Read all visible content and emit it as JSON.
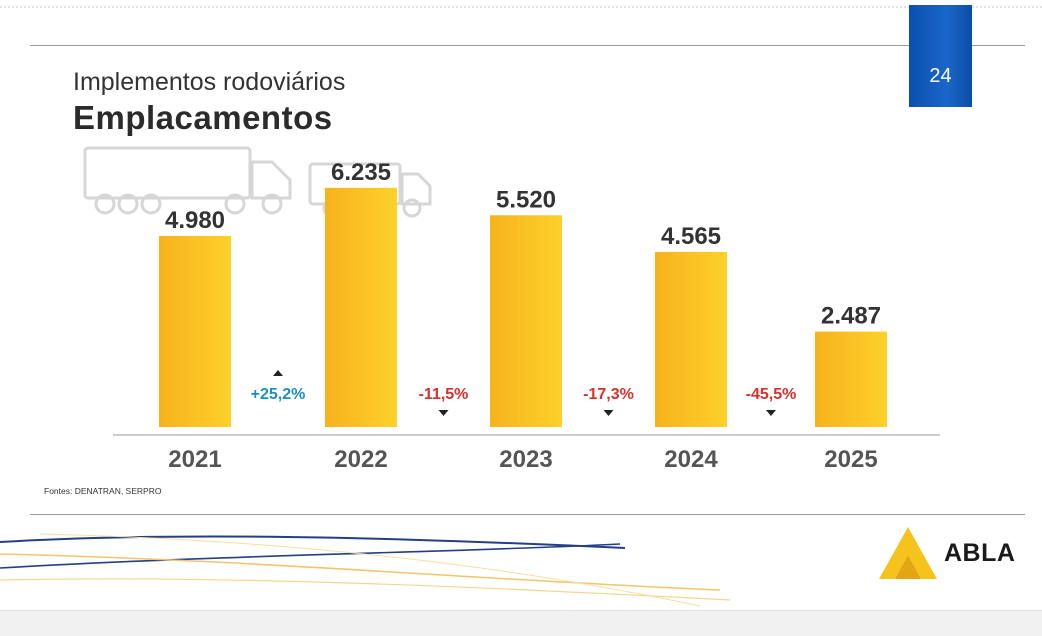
{
  "header": {
    "subtitle": "Implementos rodoviários",
    "title": "Emplacamentos",
    "page_number": "24"
  },
  "source": "Fontes: DENATRAN, SERPRO",
  "logo": {
    "text": "ABLA"
  },
  "colors": {
    "bar_light": "#fdd12a",
    "bar_dark": "#f7b21e",
    "positive": "#1b8fc4",
    "negative": "#d8302a",
    "label": "#333333",
    "year": "#555555",
    "badge": "#0a4fae"
  },
  "chart_data": {
    "type": "bar",
    "title": "Emplacamentos",
    "categories": [
      "2021",
      "2022",
      "2023",
      "2024",
      "2025"
    ],
    "values": [
      4980,
      6235,
      5520,
      4565,
      2487
    ],
    "value_labels": [
      "4.980",
      "6.235",
      "5.520",
      "4.565",
      "2.487"
    ],
    "changes": [
      {
        "label": "+25,2%",
        "direction": "up"
      },
      {
        "label": "-11,5%",
        "direction": "down"
      },
      {
        "label": "-17,3%",
        "direction": "down"
      },
      {
        "label": "-45,5%",
        "direction": "down"
      }
    ],
    "xlabel": "",
    "ylabel": "",
    "ylim": [
      0,
      7300
    ]
  }
}
